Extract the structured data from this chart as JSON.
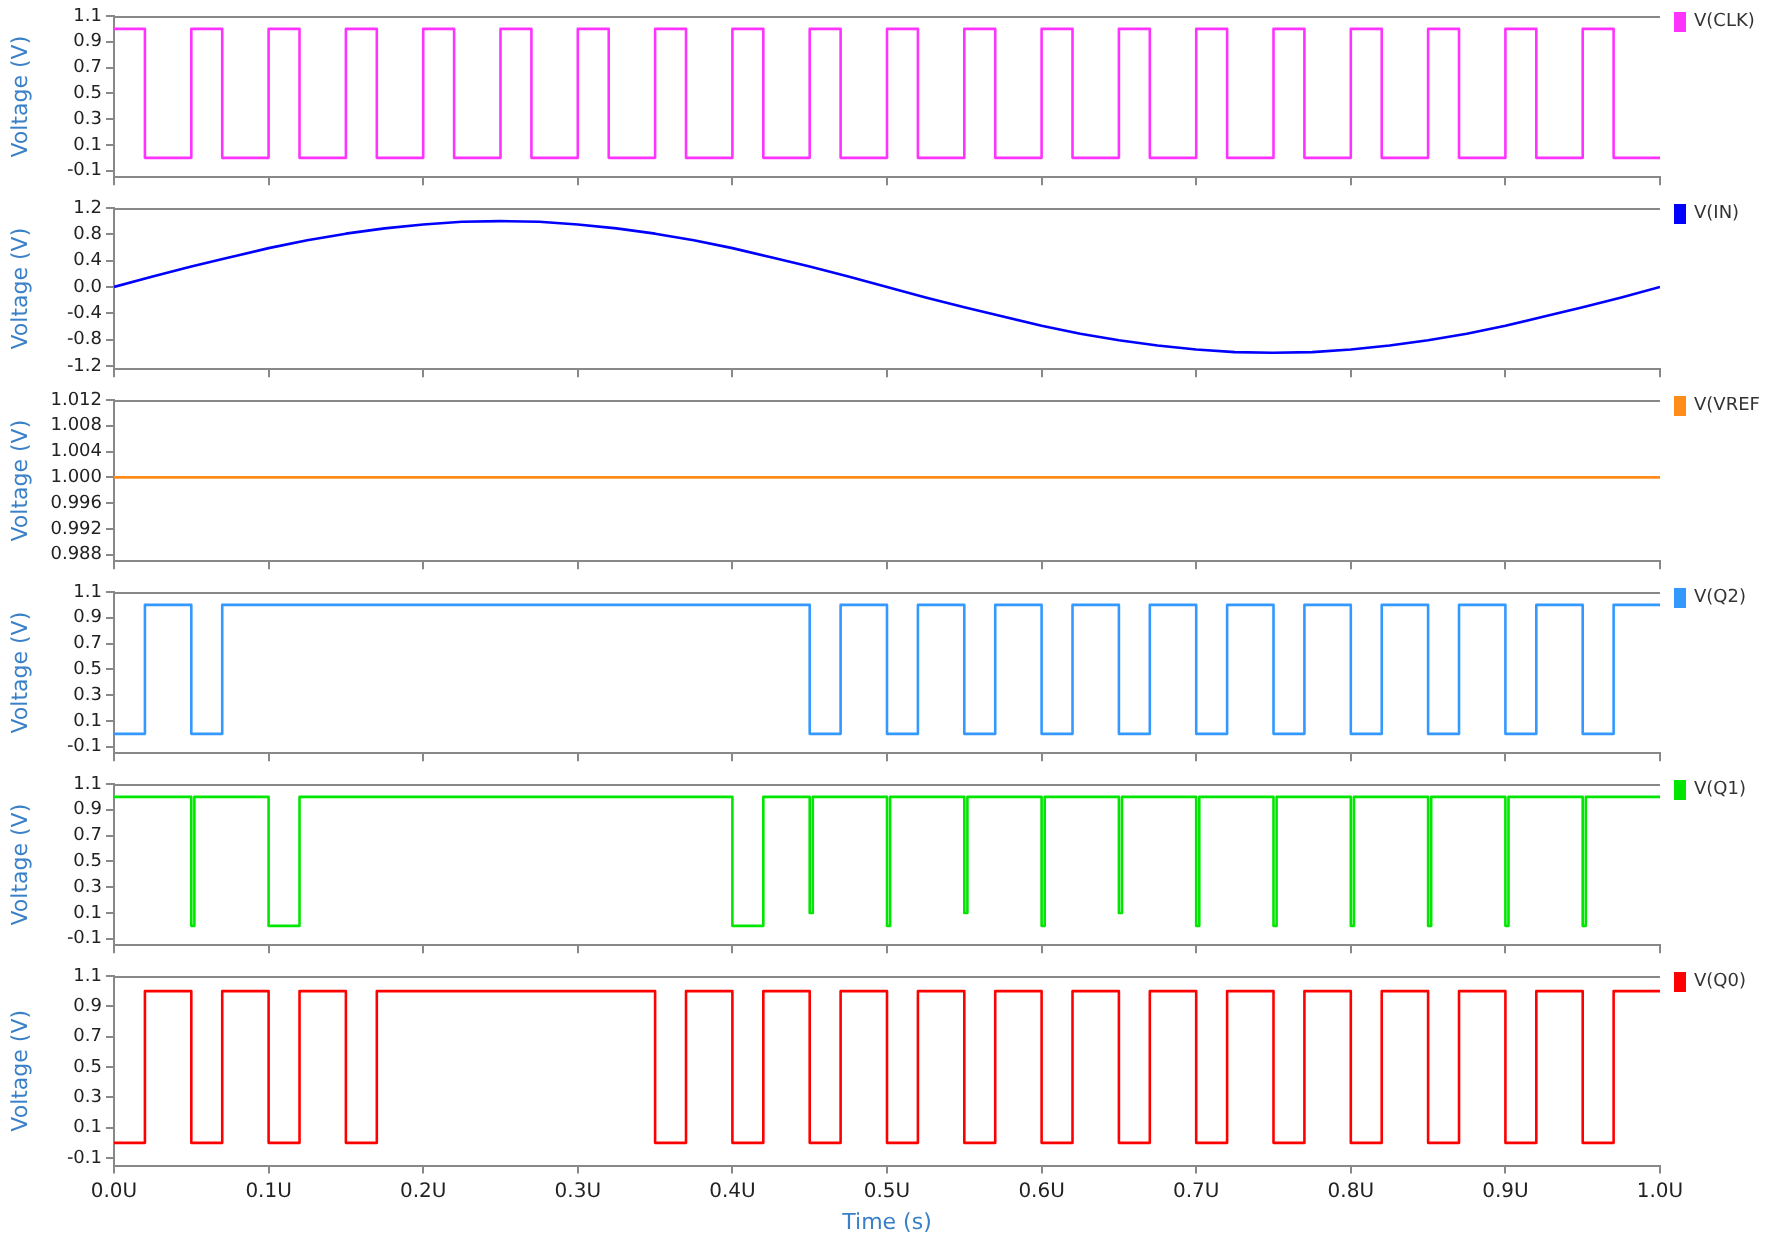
{
  "chart_data": [
    {
      "type": "step",
      "ylabel": "Voltage (V)",
      "legend": "right",
      "tick_labels": "y",
      "xlim": [
        0,
        1.0
      ],
      "xticks": [
        {
          "value": 0,
          "label": null
        },
        {
          "value": 0.1,
          "label": null
        },
        {
          "value": 0.2,
          "label": null
        },
        {
          "value": 0.3,
          "label": null
        },
        {
          "value": 0.4,
          "label": null
        },
        {
          "value": 0.5,
          "label": null
        },
        {
          "value": 0.6,
          "label": null
        },
        {
          "value": 0.7,
          "label": null
        },
        {
          "value": 0.8,
          "label": null
        },
        {
          "value": 0.9,
          "label": null
        },
        {
          "value": 1.0,
          "label": null
        }
      ],
      "ylim": [
        -0.15,
        1.1
      ],
      "yticks": [
        -0.1,
        0.1,
        0.3,
        0.5,
        0.7,
        0.9,
        1.1
      ],
      "x": [
        0,
        0.02,
        0.05,
        0.07,
        0.1,
        0.12,
        0.15,
        0.17,
        0.2,
        0.22,
        0.25,
        0.27,
        0.3,
        0.32,
        0.35,
        0.37,
        0.4,
        0.42,
        0.45,
        0.47,
        0.5,
        0.52,
        0.55,
        0.57,
        0.6,
        0.62,
        0.65,
        0.67,
        0.7,
        0.72,
        0.75,
        0.77,
        0.8,
        0.82,
        0.85,
        0.87,
        0.9,
        0.92,
        0.95,
        0.97,
        1.0
      ],
      "series": [
        {
          "name": "V(CLK)",
          "color": "#ff33ff",
          "values": [
            1,
            0,
            1,
            0,
            1,
            0,
            1,
            0,
            1,
            0,
            1,
            0,
            1,
            0,
            1,
            0,
            1,
            0,
            1,
            0,
            1,
            0,
            1,
            0,
            1,
            0,
            1,
            0,
            1,
            0,
            1,
            0,
            1,
            0,
            1,
            0,
            1,
            0,
            1,
            0,
            0
          ]
        }
      ]
    },
    {
      "type": "line",
      "ylabel": "Voltage (V)",
      "legend": "right",
      "tick_labels": "y",
      "xlim": [
        0,
        1.0
      ],
      "xticks": [
        {
          "value": 0,
          "label": null
        },
        {
          "value": 0.1,
          "label": null
        },
        {
          "value": 0.2,
          "label": null
        },
        {
          "value": 0.3,
          "label": null
        },
        {
          "value": 0.4,
          "label": null
        },
        {
          "value": 0.5,
          "label": null
        },
        {
          "value": 0.6,
          "label": null
        },
        {
          "value": 0.7,
          "label": null
        },
        {
          "value": 0.8,
          "label": null
        },
        {
          "value": 0.9,
          "label": null
        },
        {
          "value": 1.0,
          "label": null
        }
      ],
      "ylim": [
        -1.25,
        1.2
      ],
      "yticks": [
        -1.2,
        -0.8,
        -0.4,
        {
          "value": 0,
          "label": "0.0"
        },
        0.4,
        0.8,
        1.2
      ],
      "x": [
        0,
        0.025,
        0.05,
        0.075,
        0.1,
        0.125,
        0.15,
        0.175,
        0.2,
        0.225,
        0.25,
        0.275,
        0.3,
        0.325,
        0.35,
        0.375,
        0.4,
        0.425,
        0.45,
        0.475,
        0.5,
        0.525,
        0.55,
        0.575,
        0.6,
        0.625,
        0.65,
        0.675,
        0.7,
        0.725,
        0.75,
        0.775,
        0.8,
        0.825,
        0.85,
        0.875,
        0.9,
        0.925,
        0.95,
        0.975,
        1.0
      ],
      "series": [
        {
          "name": "V(IN)",
          "color": "#0000ff",
          "values": [
            0,
            0.16,
            0.31,
            0.45,
            0.59,
            0.71,
            0.81,
            0.89,
            0.95,
            0.99,
            1.0,
            0.99,
            0.95,
            0.89,
            0.81,
            0.71,
            0.59,
            0.45,
            0.31,
            0.16,
            0,
            -0.16,
            -0.31,
            -0.45,
            -0.59,
            -0.71,
            -0.81,
            -0.89,
            -0.95,
            -0.99,
            -1.0,
            -0.99,
            -0.95,
            -0.89,
            -0.81,
            -0.71,
            -0.59,
            -0.45,
            -0.31,
            -0.16,
            0
          ]
        }
      ]
    },
    {
      "type": "line",
      "ylabel": "Voltage (V)",
      "legend": "right",
      "tick_labels": "y",
      "xlim": [
        0,
        1.0
      ],
      "xticks": [
        {
          "value": 0,
          "label": null
        },
        {
          "value": 0.1,
          "label": null
        },
        {
          "value": 0.2,
          "label": null
        },
        {
          "value": 0.3,
          "label": null
        },
        {
          "value": 0.4,
          "label": null
        },
        {
          "value": 0.5,
          "label": null
        },
        {
          "value": 0.6,
          "label": null
        },
        {
          "value": 0.7,
          "label": null
        },
        {
          "value": 0.8,
          "label": null
        },
        {
          "value": 0.9,
          "label": null
        },
        {
          "value": 1.0,
          "label": null
        }
      ],
      "ylim": [
        0.987,
        1.012
      ],
      "yticks": [
        0.988,
        0.992,
        0.996,
        {
          "value": 1.0,
          "label": "1.000"
        },
        1.004,
        1.008,
        1.012
      ],
      "x": [
        0,
        1.0
      ],
      "series": [
        {
          "name": "V(VREF",
          "color": "#ff8c1a",
          "values": [
            1.0,
            1.0
          ]
        }
      ]
    },
    {
      "type": "step",
      "ylabel": "Voltage (V)",
      "legend": "right",
      "tick_labels": "y",
      "xlim": [
        0,
        1.0
      ],
      "xticks": [
        {
          "value": 0,
          "label": null
        },
        {
          "value": 0.1,
          "label": null
        },
        {
          "value": 0.2,
          "label": null
        },
        {
          "value": 0.3,
          "label": null
        },
        {
          "value": 0.4,
          "label": null
        },
        {
          "value": 0.5,
          "label": null
        },
        {
          "value": 0.6,
          "label": null
        },
        {
          "value": 0.7,
          "label": null
        },
        {
          "value": 0.8,
          "label": null
        },
        {
          "value": 0.9,
          "label": null
        },
        {
          "value": 1.0,
          "label": null
        }
      ],
      "ylim": [
        -0.15,
        1.1
      ],
      "yticks": [
        -0.1,
        0.1,
        0.3,
        0.5,
        0.7,
        0.9,
        1.1
      ],
      "x": [
        0,
        0.02,
        0.05,
        0.07,
        0.45,
        0.47,
        0.5,
        0.52,
        0.55,
        0.57,
        0.6,
        0.62,
        0.65,
        0.67,
        0.7,
        0.72,
        0.75,
        0.77,
        0.8,
        0.82,
        0.85,
        0.87,
        0.9,
        0.92,
        0.95,
        0.97,
        1.0
      ],
      "series": [
        {
          "name": "V(Q2)",
          "color": "#3399ff",
          "values": [
            0,
            1,
            0,
            1,
            0,
            1,
            0,
            1,
            0,
            1,
            0,
            1,
            0,
            1,
            0,
            1,
            0,
            1,
            0,
            1,
            0,
            1,
            0,
            1,
            0,
            1,
            1
          ]
        }
      ]
    },
    {
      "type": "step",
      "ylabel": "Voltage (V)",
      "legend": "right",
      "tick_labels": "y",
      "xlim": [
        0,
        1.0
      ],
      "xticks": [
        {
          "value": 0,
          "label": null
        },
        {
          "value": 0.1,
          "label": null
        },
        {
          "value": 0.2,
          "label": null
        },
        {
          "value": 0.3,
          "label": null
        },
        {
          "value": 0.4,
          "label": null
        },
        {
          "value": 0.5,
          "label": null
        },
        {
          "value": 0.6,
          "label": null
        },
        {
          "value": 0.7,
          "label": null
        },
        {
          "value": 0.8,
          "label": null
        },
        {
          "value": 0.9,
          "label": null
        },
        {
          "value": 1.0,
          "label": null
        }
      ],
      "ylim": [
        -0.15,
        1.1
      ],
      "yticks": [
        -0.1,
        0.1,
        0.3,
        0.5,
        0.7,
        0.9,
        1.1
      ],
      "x": [
        0,
        0.05,
        0.052,
        0.1,
        0.12,
        0.4,
        0.42,
        0.45,
        0.452,
        0.5,
        0.502,
        0.55,
        0.552,
        0.6,
        0.602,
        0.65,
        0.652,
        0.7,
        0.702,
        0.75,
        0.752,
        0.8,
        0.802,
        0.85,
        0.852,
        0.9,
        0.902,
        0.95,
        0.952,
        1.0
      ],
      "series": [
        {
          "name": "V(Q1)",
          "color": "#00e600",
          "values": [
            1,
            0,
            1,
            0,
            1,
            0,
            1,
            0.1,
            1,
            0,
            1,
            0.1,
            1,
            0,
            1,
            0.1,
            1,
            0,
            1,
            0,
            1,
            0,
            1,
            0,
            1,
            0,
            1,
            0,
            1,
            1
          ]
        }
      ]
    },
    {
      "type": "step",
      "ylabel": "Voltage (V)",
      "xlabel": "Time (s)",
      "legend": "right",
      "xlim": [
        0,
        1.0
      ],
      "xticks": [
        {
          "value": 0,
          "label": "0.0U"
        },
        {
          "value": 0.1,
          "label": "0.1U"
        },
        {
          "value": 0.2,
          "label": "0.2U"
        },
        {
          "value": 0.3,
          "label": "0.3U"
        },
        {
          "value": 0.4,
          "label": "0.4U"
        },
        {
          "value": 0.5,
          "label": "0.5U"
        },
        {
          "value": 0.6,
          "label": "0.6U"
        },
        {
          "value": 0.7,
          "label": "0.7U"
        },
        {
          "value": 0.8,
          "label": "0.8U"
        },
        {
          "value": 0.9,
          "label": "0.9U"
        },
        {
          "value": 1.0,
          "label": "1.0U"
        }
      ],
      "ylim": [
        -0.15,
        1.1
      ],
      "yticks": [
        -0.1,
        0.1,
        0.3,
        0.5,
        0.7,
        0.9,
        1.1
      ],
      "x": [
        0,
        0.02,
        0.05,
        0.07,
        0.1,
        0.12,
        0.15,
        0.17,
        0.35,
        0.37,
        0.4,
        0.42,
        0.45,
        0.47,
        0.5,
        0.52,
        0.55,
        0.57,
        0.6,
        0.62,
        0.65,
        0.67,
        0.7,
        0.72,
        0.75,
        0.77,
        0.8,
        0.82,
        0.85,
        0.87,
        0.9,
        0.92,
        0.95,
        0.97,
        1.0
      ],
      "series": [
        {
          "name": "V(Q0)",
          "color": "#ff0000",
          "values": [
            0,
            1,
            0,
            1,
            0,
            1,
            0,
            1,
            0,
            1,
            0,
            1,
            0,
            1,
            0,
            1,
            0,
            1,
            0,
            1,
            0,
            1,
            0,
            1,
            0,
            1,
            0,
            1,
            0,
            1,
            0,
            1,
            0,
            1,
            1
          ]
        }
      ]
    }
  ]
}
